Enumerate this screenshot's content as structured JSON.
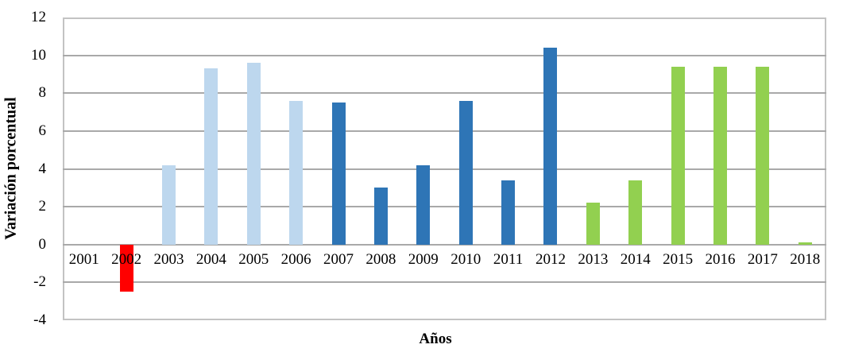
{
  "chart_data": {
    "type": "bar",
    "title": "",
    "xlabel": "Años",
    "ylabel": "Variación porcentual",
    "categories": [
      "2001",
      "2002",
      "2003",
      "2004",
      "2005",
      "2006",
      "2007",
      "2008",
      "2009",
      "2010",
      "2011",
      "2012",
      "2013",
      "2014",
      "2015",
      "2016",
      "2017",
      "2018"
    ],
    "values": [
      0,
      -2.5,
      4.2,
      9.3,
      9.6,
      7.6,
      7.5,
      3,
      4.2,
      7.6,
      3.4,
      10.4,
      2.2,
      3.4,
      9.4,
      9.4,
      9.4,
      0.1
    ],
    "bar_colors": [
      null,
      "#FF0000",
      "#BDD7EE",
      "#BDD7EE",
      "#BDD7EE",
      "#BDD7EE",
      "#2E75B6",
      "#2E75B6",
      "#2E75B6",
      "#2E75B6",
      "#2E75B6",
      "#2E75B6",
      "#92D050",
      "#92D050",
      "#92D050",
      "#92D050",
      "#92D050",
      "#92D050"
    ],
    "color_groups": {
      "red": "#FF0000",
      "light_blue": "#BDD7EE",
      "dark_blue": "#2E75B6",
      "green": "#92D050"
    },
    "ylim": [
      -4,
      12
    ],
    "yticks": [
      12,
      10,
      8,
      6,
      4,
      2,
      0,
      -2,
      -4
    ],
    "grid": true,
    "gridline_color": "#a9a9a9",
    "legend": false
  }
}
